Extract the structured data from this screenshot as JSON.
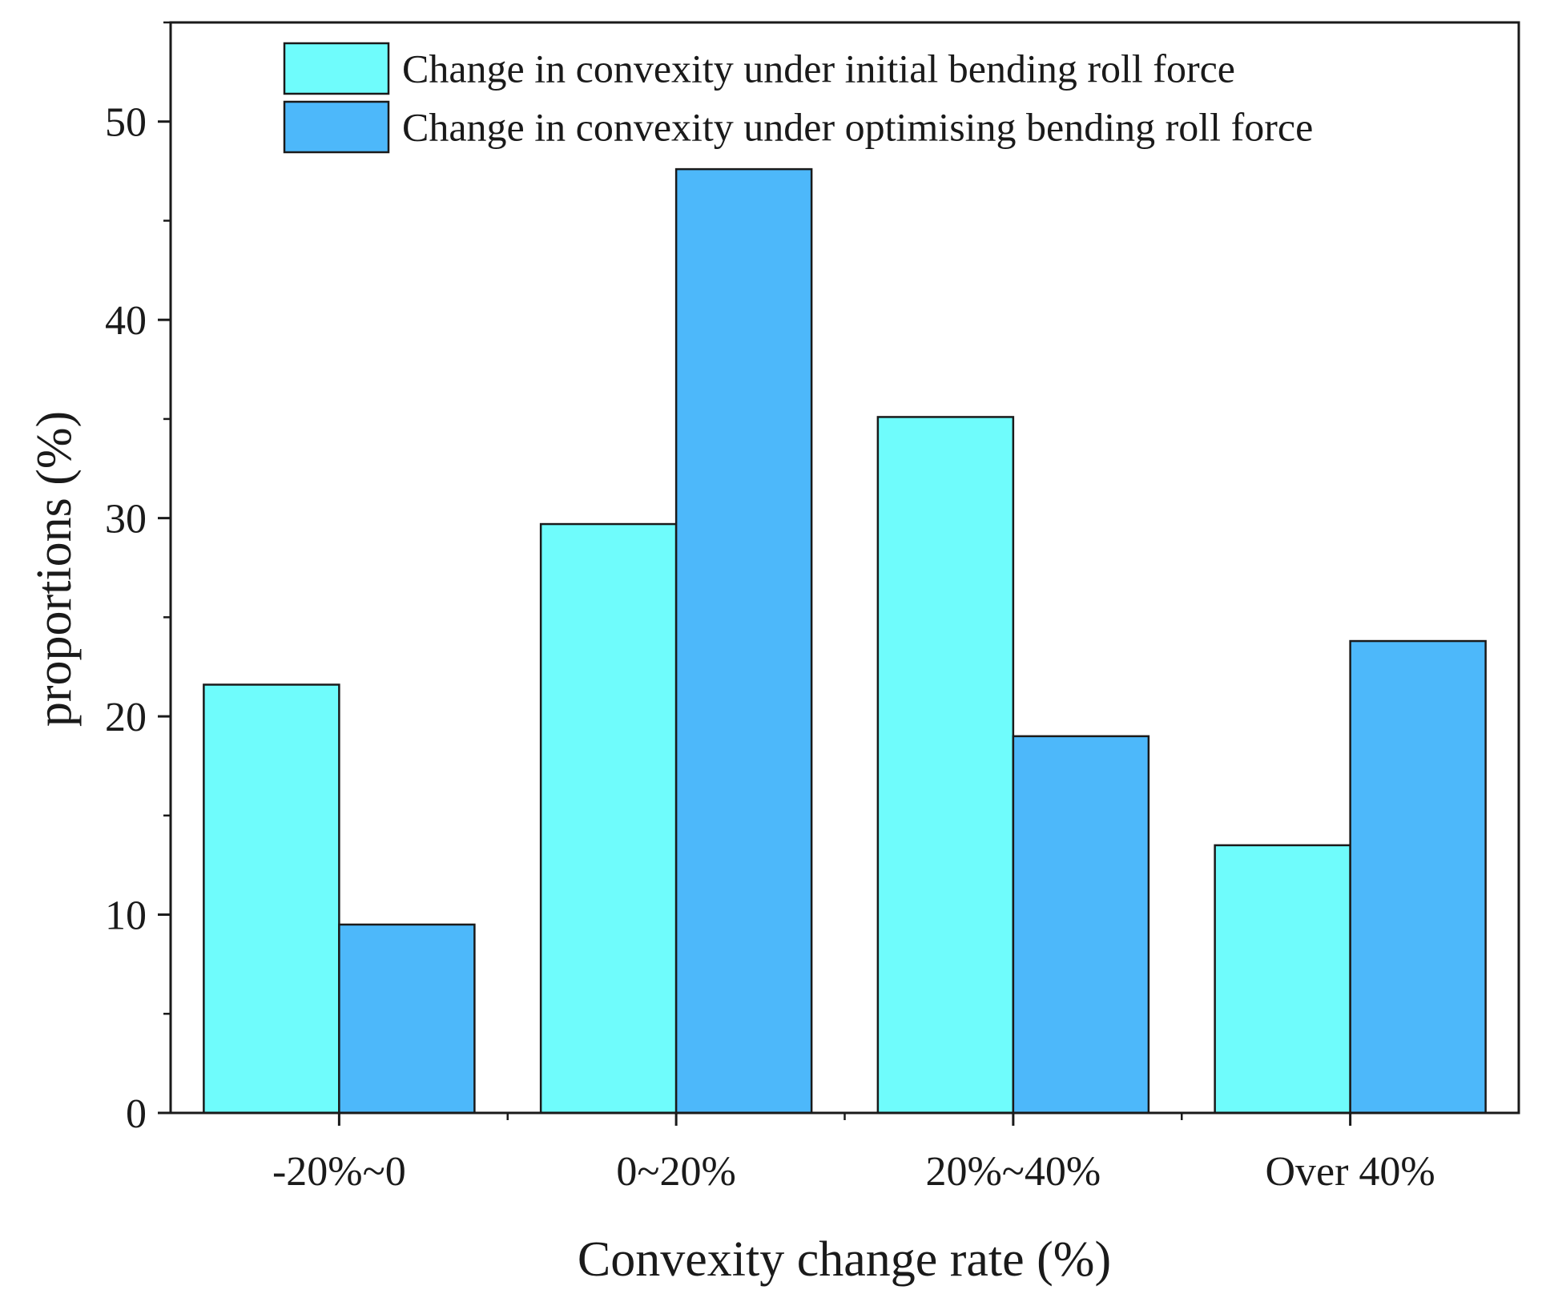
{
  "chart_data": {
    "type": "bar",
    "title": "",
    "xlabel": "Convexity change rate (%)",
    "ylabel": "proportions (%)",
    "ylim": [
      0,
      55
    ],
    "yticks": [
      0,
      10,
      20,
      30,
      40,
      50
    ],
    "ytick_labels": [
      "0",
      "10",
      "20",
      "30",
      "40",
      "50"
    ],
    "categories": [
      "-20%~0",
      "0~20%",
      "20%~40%",
      "Over 40%"
    ],
    "series": [
      {
        "name": "Change in convexity under initial bending roll force",
        "color": "#6ffcfc",
        "values": [
          21.6,
          29.7,
          35.1,
          13.5
        ]
      },
      {
        "name": "Change in convexity under optimising bending roll force",
        "color": "#4db8fa",
        "values": [
          9.5,
          47.6,
          19.0,
          23.8
        ]
      }
    ],
    "legend_position": "top"
  }
}
